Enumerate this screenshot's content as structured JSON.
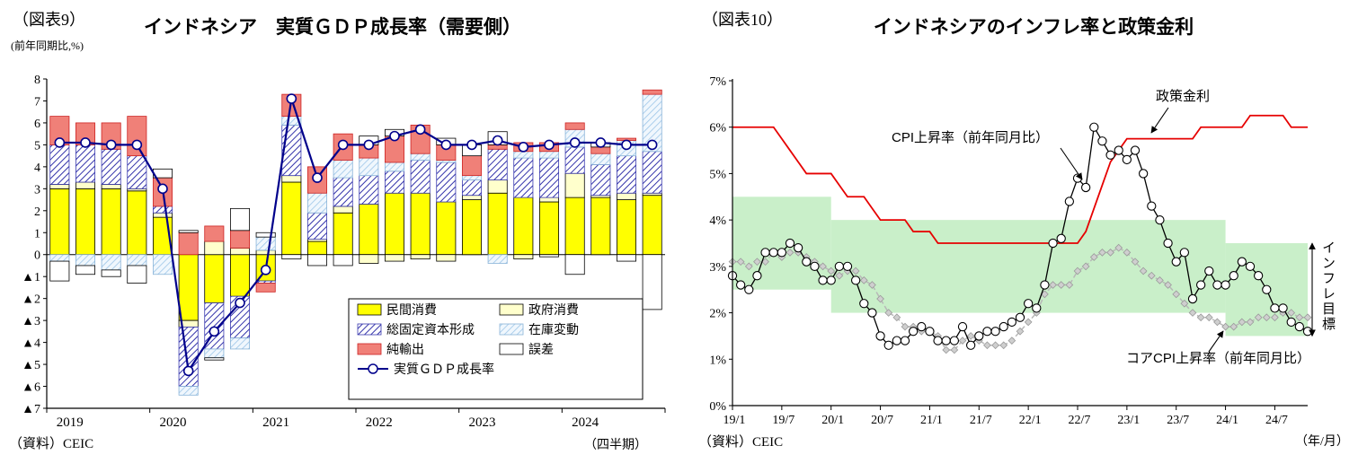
{
  "chart_data": [
    {
      "type": "bar",
      "fig_label": "（図表9）",
      "title": "インドネシア　実質ＧＤＰ成長率（需要側）",
      "unit": "(前年同期比,%)",
      "source": "（資料）CEIC",
      "x_note": "（四半期）",
      "ylim": [
        -7,
        8
      ],
      "ytick_labels": [
        "▲7",
        "▲6",
        "▲5",
        "▲4",
        "▲3",
        "▲2",
        "▲1",
        "0",
        "1",
        "2",
        "3",
        "4",
        "5",
        "6",
        "7",
        "8"
      ],
      "year_labels": [
        "2019",
        "2020",
        "2021",
        "2022",
        "2023",
        "2024"
      ],
      "categories": [
        "2019/1Q",
        "2019/2Q",
        "2019/3Q",
        "2019/4Q",
        "2020/1Q",
        "2020/2Q",
        "2020/3Q",
        "2020/4Q",
        "2021/1Q",
        "2021/2Q",
        "2021/3Q",
        "2021/4Q",
        "2022/1Q",
        "2022/2Q",
        "2022/3Q",
        "2022/4Q",
        "2023/1Q",
        "2023/2Q",
        "2023/3Q",
        "2023/4Q",
        "2024/1Q",
        "2024/2Q",
        "2024/3Q",
        "2024/4Q"
      ],
      "series": [
        {
          "name": "民間消費",
          "style": "private",
          "values": [
            3.0,
            3.0,
            3.0,
            2.9,
            1.7,
            -3.0,
            -2.2,
            -1.9,
            -1.2,
            3.3,
            0.6,
            1.9,
            2.3,
            2.8,
            2.8,
            2.4,
            2.5,
            2.8,
            2.6,
            2.4,
            2.6,
            2.6,
            2.5,
            2.7
          ]
        },
        {
          "name": "政府消費",
          "style": "government",
          "values": [
            0.2,
            0.3,
            0.2,
            0.1,
            0.2,
            -0.3,
            0.6,
            0.3,
            0.2,
            0.3,
            0.1,
            0.3,
            -0.4,
            -0.3,
            -0.2,
            -0.3,
            0.2,
            0.6,
            -0.2,
            0.2,
            1.1,
            0.1,
            0.3,
            0.1
          ]
        },
        {
          "name": "総固定資本形成",
          "style": "gfcf",
          "values": [
            1.8,
            1.7,
            1.6,
            1.5,
            0.3,
            -2.7,
            -2.1,
            -1.9,
            -0.1,
            2.3,
            1.2,
            1.3,
            1.3,
            1.0,
            1.5,
            1.8,
            0.7,
            1.4,
            1.8,
            1.8,
            1.2,
            1.4,
            1.7,
            1.9
          ]
        },
        {
          "name": "在庫変動",
          "style": "inventory",
          "values": [
            -0.3,
            -0.5,
            -0.7,
            -0.5,
            -0.9,
            -0.4,
            -0.4,
            -0.5,
            0.6,
            0.4,
            0.9,
            0.8,
            0.8,
            0.4,
            0.3,
            0.1,
            0.2,
            -0.4,
            0.3,
            0.3,
            0.8,
            0.5,
            0.7,
            2.6
          ]
        },
        {
          "name": "純輸出",
          "style": "net",
          "values": [
            1.3,
            1.0,
            1.2,
            1.8,
            1.3,
            1.0,
            0.7,
            0.8,
            -0.4,
            1.0,
            1.2,
            1.2,
            0.6,
            1.2,
            1.3,
            0.7,
            0.9,
            0.2,
            0.4,
            0.4,
            0.3,
            0.3,
            0.1,
            0.2
          ]
        },
        {
          "name": "誤差",
          "style": "error",
          "values": [
            -0.9,
            -0.4,
            -0.3,
            -0.8,
            0.4,
            0.1,
            -0.1,
            1.0,
            0.2,
            -0.2,
            -0.5,
            -0.5,
            0.4,
            0.3,
            0.0,
            0.3,
            0.5,
            0.6,
            0.0,
            -0.1,
            -0.9,
            0.2,
            -0.3,
            -2.5
          ]
        }
      ],
      "line_series": {
        "name": "実質ＧＤＰ成長率",
        "values": [
          5.1,
          5.1,
          5.0,
          5.0,
          3.0,
          -5.3,
          -3.5,
          -2.2,
          -0.7,
          7.1,
          3.5,
          5.0,
          5.0,
          5.4,
          5.7,
          5.0,
          5.0,
          5.2,
          4.9,
          5.0,
          5.1,
          5.1,
          5.0,
          5.0
        ]
      },
      "colors": {
        "private": "#ffff00",
        "government": "#ffffcc",
        "gfcf_hatch": "#3333aa",
        "inventory_hatch": "#9cc6e8",
        "net_exports": "#f08078",
        "net_exports_border": "#cc2222",
        "error": "#ffffff",
        "line": "#00008b"
      }
    },
    {
      "type": "line",
      "fig_label": "（図表10）",
      "title": "インドネシアのインフレ率と政策金利",
      "source": "（資料）CEIC",
      "x_note": "（年/月）",
      "ylim": [
        0,
        7
      ],
      "ytick_labels": [
        "0%",
        "1%",
        "2%",
        "3%",
        "4%",
        "5%",
        "6%",
        "7%"
      ],
      "xtick_labels": [
        "19/1",
        "19/7",
        "20/1",
        "20/7",
        "21/1",
        "21/7",
        "22/1",
        "22/7",
        "23/1",
        "23/7",
        "24/1",
        "24/7"
      ],
      "xtick_interval": 6,
      "series": [
        {
          "name": "政策金利",
          "color": "#e60000",
          "values": [
            6,
            6,
            6,
            6,
            6,
            6,
            5.75,
            5.5,
            5.25,
            5,
            5,
            5,
            5,
            4.75,
            4.5,
            4.5,
            4.5,
            4.25,
            4,
            4,
            4,
            4,
            3.75,
            3.75,
            3.75,
            3.5,
            3.5,
            3.5,
            3.5,
            3.5,
            3.5,
            3.5,
            3.5,
            3.5,
            3.5,
            3.5,
            3.5,
            3.5,
            3.5,
            3.5,
            3.5,
            3.5,
            3.5,
            3.75,
            4.25,
            4.75,
            5.25,
            5.5,
            5.75,
            5.75,
            5.75,
            5.75,
            5.75,
            5.75,
            5.75,
            5.75,
            5.75,
            6,
            6,
            6,
            6,
            6,
            6,
            6.25,
            6.25,
            6.25,
            6.25,
            6.25,
            6,
            6,
            6
          ]
        },
        {
          "name": "CPI上昇率（前年同月比）",
          "color": "#000000",
          "marker": "circle",
          "values": [
            2.8,
            2.6,
            2.5,
            2.8,
            3.3,
            3.3,
            3.3,
            3.5,
            3.4,
            3.1,
            3.0,
            2.7,
            2.7,
            3.0,
            3.0,
            2.7,
            2.2,
            2.0,
            1.5,
            1.3,
            1.4,
            1.4,
            1.6,
            1.7,
            1.6,
            1.4,
            1.4,
            1.4,
            1.7,
            1.3,
            1.5,
            1.6,
            1.6,
            1.7,
            1.8,
            1.9,
            2.2,
            2.1,
            2.6,
            3.5,
            3.6,
            4.4,
            4.9,
            4.7,
            6.0,
            5.7,
            5.4,
            5.5,
            5.3,
            5.5,
            5.0,
            4.3,
            4.0,
            3.5,
            3.1,
            3.3,
            2.3,
            2.6,
            2.9,
            2.6,
            2.6,
            2.8,
            3.1,
            3.0,
            2.8,
            2.5,
            2.1,
            2.1,
            1.8,
            1.7,
            1.6
          ]
        },
        {
          "name": "コアCPI上昇率（前年同月比）",
          "color": "#b8b8b8",
          "marker": "diamond",
          "values": [
            3.1,
            3.1,
            3.0,
            3.1,
            3.1,
            3.3,
            3.2,
            3.3,
            3.3,
            3.2,
            3.1,
            3.0,
            2.9,
            2.8,
            2.9,
            2.9,
            2.7,
            2.6,
            2.3,
            2.0,
            1.9,
            1.7,
            1.7,
            1.6,
            1.6,
            1.5,
            1.2,
            1.2,
            1.4,
            1.5,
            1.4,
            1.3,
            1.3,
            1.3,
            1.4,
            1.6,
            1.8,
            2.0,
            2.4,
            2.6,
            2.6,
            2.6,
            2.9,
            3.0,
            3.2,
            3.3,
            3.3,
            3.4,
            3.3,
            3.1,
            2.9,
            2.8,
            2.7,
            2.6,
            2.4,
            2.2,
            2.0,
            1.9,
            1.9,
            1.8,
            1.7,
            1.7,
            1.8,
            1.8,
            1.9,
            1.9,
            1.9,
            2.0,
            2.0,
            1.9,
            1.9
          ]
        }
      ],
      "target_band": {
        "label": "インフレ目標",
        "color": "#c9efc9",
        "segments": [
          {
            "start_index": 0,
            "end_index": 12,
            "low": 2.5,
            "high": 4.5
          },
          {
            "start_index": 12,
            "end_index": 60,
            "low": 2.0,
            "high": 4.0
          },
          {
            "start_index": 60,
            "end_index": 70,
            "low": 1.5,
            "high": 3.5
          }
        ]
      },
      "annotations": [
        {
          "id": "policy",
          "text": "政策金利"
        },
        {
          "id": "cpi",
          "text": "CPI上昇率（前年同月比）"
        },
        {
          "id": "core",
          "text": "コアCPI上昇率（前年同月比）"
        }
      ]
    }
  ]
}
